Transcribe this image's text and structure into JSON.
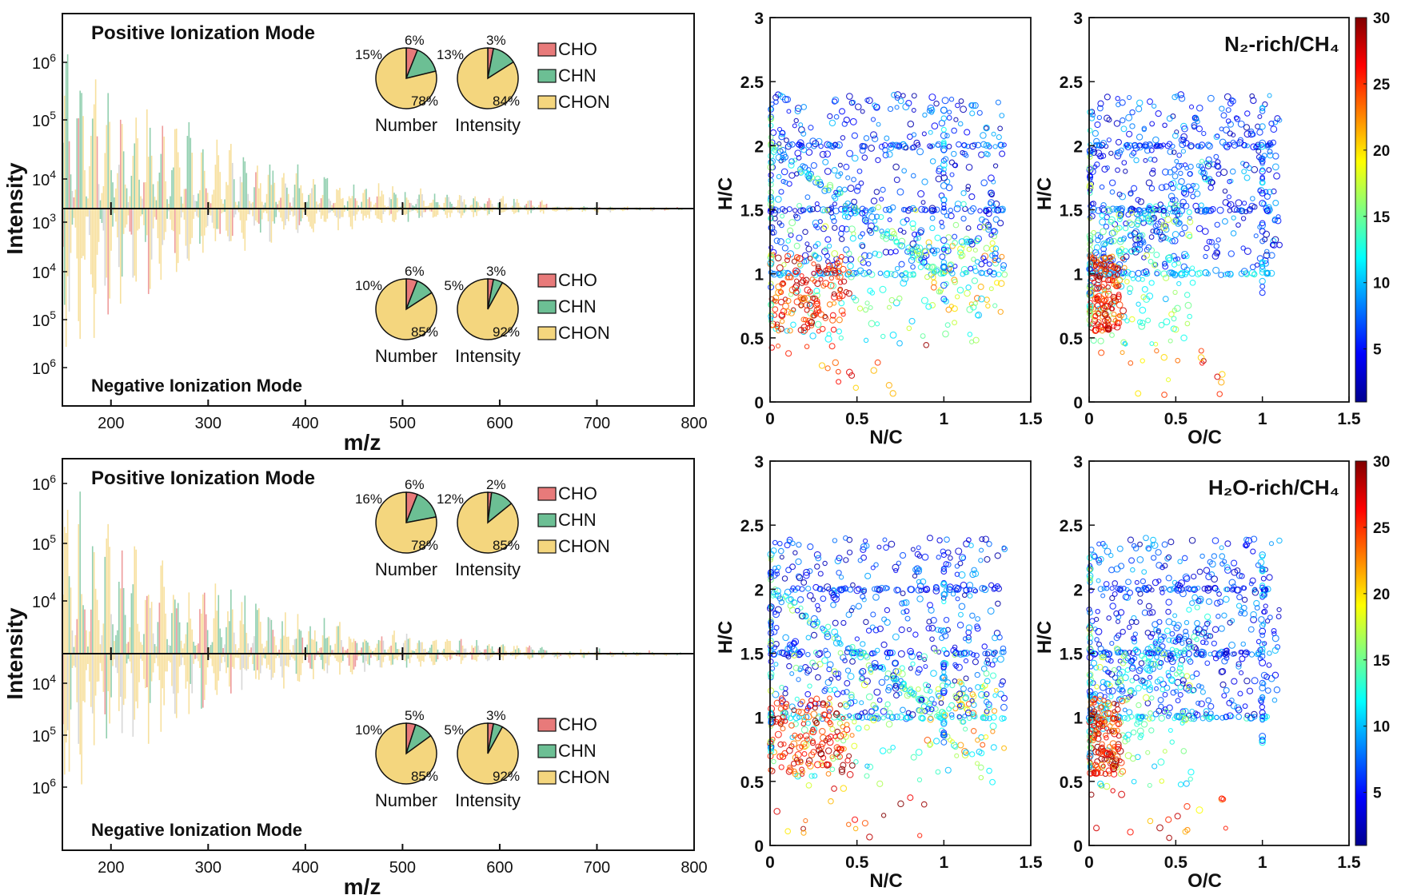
{
  "colors": {
    "cho": "#e87a7a",
    "chn": "#6cbf94",
    "chon": "#f4d67e",
    "grey": "#c9c9c9",
    "axis": "#111111"
  },
  "legend": [
    "CHO",
    "CHN",
    "CHON"
  ],
  "pie_labels": {
    "number": "Number",
    "intensity": "Intensity"
  },
  "chart_data": [
    {
      "type": "bar",
      "id": "spectrum-top",
      "title_pos": "Positive Ionization Mode",
      "title_neg": "Negative Ionization Mode",
      "xlabel": "m/z",
      "ylabel": "Intensity",
      "xlim": [
        150,
        800
      ],
      "xticks": [
        "200",
        "300",
        "400",
        "500",
        "600",
        "700",
        "800"
      ],
      "ytick_labels_pos": [
        "10^3",
        "10^4",
        "10^5",
        "10^6"
      ],
      "ytick_labels_neg": [
        "10^4",
        "10^5",
        "10^6"
      ],
      "pies": {
        "pos": {
          "number": {
            "values": [
              6,
              15,
              78
            ],
            "labels": [
              "6%",
              "15%",
              "78%"
            ]
          },
          "intensity": {
            "values": [
              3,
              13,
              84
            ],
            "labels": [
              "3%",
              "13%",
              "84%"
            ]
          }
        },
        "neg": {
          "number": {
            "values": [
              6,
              10,
              85
            ],
            "labels": [
              "6%",
              "10%",
              "85%"
            ]
          },
          "intensity": {
            "values": [
              3,
              5,
              92
            ],
            "labels": [
              "3%",
              "5%",
              "92%"
            ]
          }
        }
      }
    },
    {
      "type": "bar",
      "id": "spectrum-bottom",
      "title_pos": "Positive Ionization Mode",
      "title_neg": "Negative Ionization Mode",
      "xlabel": "m/z",
      "ylabel": "Intensity",
      "xlim": [
        150,
        800
      ],
      "xticks": [
        "200",
        "300",
        "400",
        "500",
        "600",
        "700",
        "800"
      ],
      "ytick_labels_pos": [
        "10^4",
        "10^5",
        "10^6"
      ],
      "ytick_labels_neg": [
        "10^4",
        "10^5",
        "10^6"
      ],
      "pies": {
        "pos": {
          "number": {
            "values": [
              6,
              16,
              78
            ],
            "labels": [
              "6%",
              "16%",
              "78%"
            ]
          },
          "intensity": {
            "values": [
              2,
              12,
              85
            ],
            "labels": [
              "2%",
              "12%",
              "85%"
            ]
          }
        },
        "neg": {
          "number": {
            "values": [
              5,
              10,
              85
            ],
            "labels": [
              "5%",
              "10%",
              "85%"
            ]
          },
          "intensity": {
            "values": [
              3,
              5,
              92
            ],
            "labels": [
              "3%",
              "5%",
              "92%"
            ]
          }
        }
      }
    },
    {
      "type": "scatter",
      "id": "vk-nc-top",
      "xlabel": "N/C",
      "ylabel": "H/C",
      "xlim": [
        0,
        1.5
      ],
      "ylim": [
        0,
        3
      ],
      "xticks": [
        "0",
        "0.5",
        "1",
        "1.5"
      ],
      "yticks": [
        "0",
        "0.5",
        "1",
        "1.5",
        "2",
        "2.5",
        "3"
      ]
    },
    {
      "type": "scatter",
      "id": "vk-oc-top",
      "xlabel": "O/C",
      "ylabel": "H/C",
      "xlim": [
        0,
        1.5
      ],
      "ylim": [
        0,
        3
      ],
      "xticks": [
        "0",
        "0.5",
        "1",
        "1.5"
      ],
      "yticks": [
        "0",
        "0.5",
        "1",
        "1.5",
        "2",
        "2.5",
        "3"
      ],
      "annotation": "N₂-rich/CH₄",
      "colorbar": {
        "range": [
          1,
          30
        ],
        "ticks": [
          "5",
          "10",
          "15",
          "20",
          "25",
          "30"
        ]
      }
    },
    {
      "type": "scatter",
      "id": "vk-nc-bottom",
      "xlabel": "N/C",
      "ylabel": "H/C",
      "xlim": [
        0,
        1.5
      ],
      "ylim": [
        0,
        3
      ],
      "xticks": [
        "0",
        "0.5",
        "1",
        "1.5"
      ],
      "yticks": [
        "0",
        "0.5",
        "1",
        "1.5",
        "2",
        "2.5",
        "3"
      ]
    },
    {
      "type": "scatter",
      "id": "vk-oc-bottom",
      "xlabel": "O/C",
      "ylabel": "H/C",
      "xlim": [
        0,
        1.5
      ],
      "ylim": [
        0,
        3
      ],
      "xticks": [
        "0",
        "0.5",
        "1",
        "1.5"
      ],
      "yticks": [
        "0",
        "0.5",
        "1",
        "1.5",
        "2",
        "2.5",
        "3"
      ],
      "annotation": "H₂O-rich/CH₄",
      "colorbar": {
        "range": [
          1,
          30
        ],
        "ticks": [
          "5",
          "10",
          "15",
          "20",
          "25",
          "30"
        ]
      }
    }
  ]
}
